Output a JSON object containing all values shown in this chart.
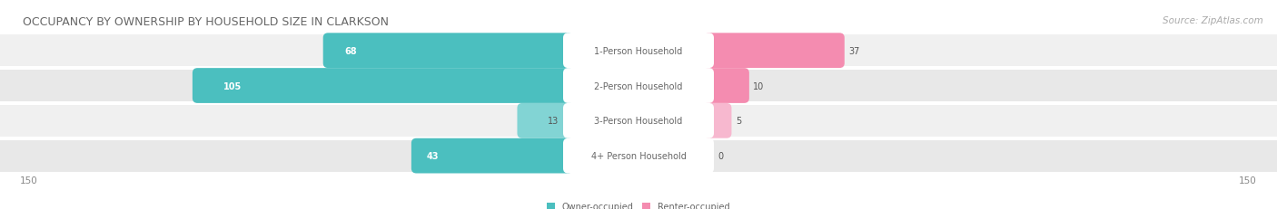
{
  "title": "OCCUPANCY BY OWNERSHIP BY HOUSEHOLD SIZE IN CLARKSON",
  "source": "Source: ZipAtlas.com",
  "categories": [
    "1-Person Household",
    "2-Person Household",
    "3-Person Household",
    "4+ Person Household"
  ],
  "owner_values": [
    68,
    105,
    13,
    43
  ],
  "renter_values": [
    37,
    10,
    5,
    0
  ],
  "owner_color": "#4bbfbf",
  "renter_color": "#f48cb0",
  "owner_color_light": "#82d4d4",
  "renter_color_light": "#f7b8cf",
  "row_bg_colors": [
    "#f0f0f0",
    "#e8e8e8",
    "#f0f0f0",
    "#e8e8e8"
  ],
  "label_bg_color": "#ffffff",
  "axis_max": 150,
  "legend_owner": "Owner-occupied",
  "legend_renter": "Renter-occupied",
  "title_fontsize": 9,
  "source_fontsize": 7.5,
  "label_fontsize": 7,
  "value_fontsize": 7,
  "axis_fontsize": 7.5,
  "background_color": "#ffffff"
}
